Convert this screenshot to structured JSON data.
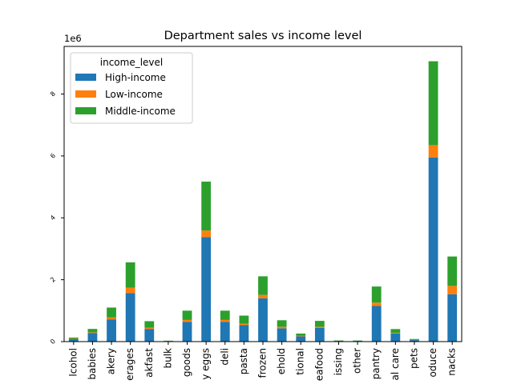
{
  "chart_data": {
    "type": "bar",
    "stacked": true,
    "title": "Department sales vs income level",
    "xlabel": "",
    "ylabel": "",
    "y_offset_label": "1e6",
    "ylim": [
      0,
      9540000
    ],
    "yticks": [
      0,
      2000000,
      4000000,
      6000000,
      8000000
    ],
    "ytick_labels": [
      "0",
      "2",
      "4",
      "6",
      "8"
    ],
    "categories": [
      "lcohol",
      "babies",
      "akery",
      "erages",
      "akfast",
      "bulk",
      "goods",
      "y eggs",
      "deli",
      "pasta",
      "frozen",
      "ehold",
      "tional",
      "eafood",
      "issing",
      "other",
      "pantry",
      "al care",
      "pets",
      "oduce",
      "nacks"
    ],
    "series": [
      {
        "name": "High-income",
        "color": "#1f77b4",
        "values": [
          80000,
          280000,
          720000,
          1570000,
          410000,
          20000,
          640000,
          3380000,
          640000,
          530000,
          1400000,
          430000,
          170000,
          440000,
          25000,
          25000,
          1150000,
          260000,
          50000,
          5950000,
          1530000
        ]
      },
      {
        "name": "Low-income",
        "color": "#ff7f0e",
        "values": [
          10000,
          20000,
          60000,
          170000,
          40000,
          0,
          60000,
          210000,
          60000,
          50000,
          110000,
          50000,
          15000,
          40000,
          5000,
          0,
          110000,
          25000,
          5000,
          400000,
          270000
        ]
      },
      {
        "name": "Middle-income",
        "color": "#2ca02c",
        "values": [
          40000,
          110000,
          320000,
          820000,
          210000,
          10000,
          300000,
          1580000,
          300000,
          260000,
          600000,
          210000,
          75000,
          190000,
          10000,
          10000,
          520000,
          120000,
          30000,
          2710000,
          950000
        ]
      }
    ],
    "legend": {
      "title": "income_level",
      "placement": "top-left"
    },
    "grid": false
  }
}
